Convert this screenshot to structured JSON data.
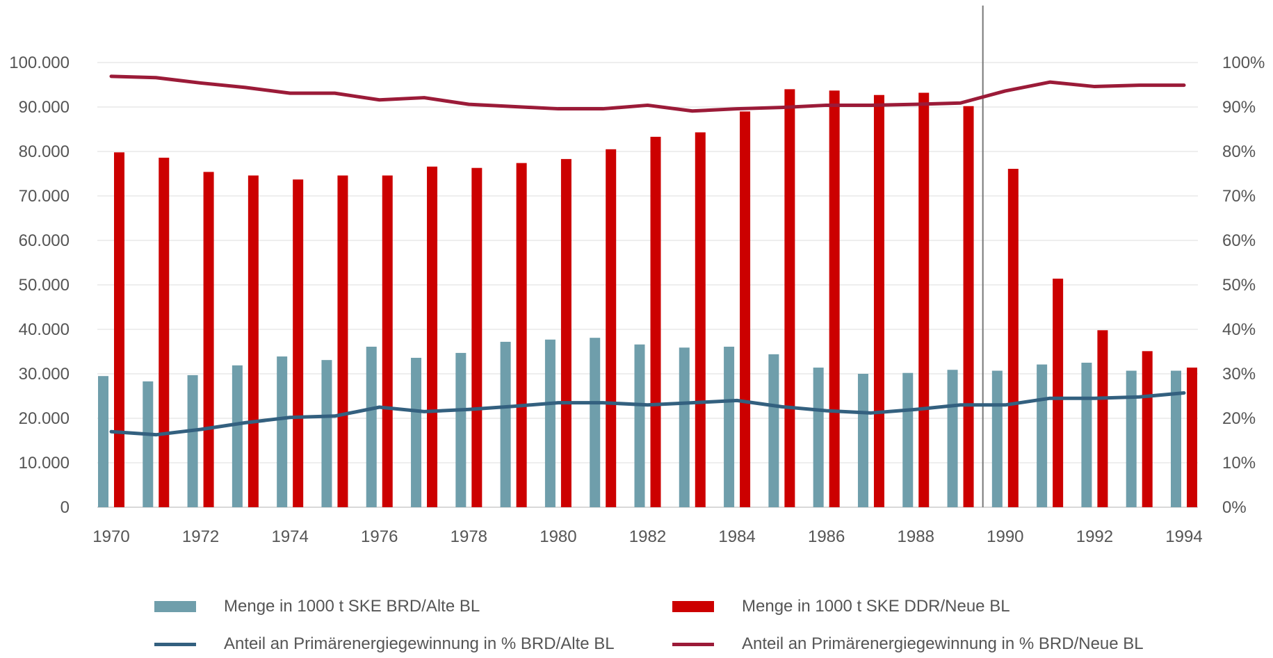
{
  "chart_data": {
    "type": "bar",
    "categories": [
      "1970",
      "1971",
      "1972",
      "1973",
      "1974",
      "1975",
      "1976",
      "1977",
      "1978",
      "1979",
      "1980",
      "1981",
      "1982",
      "1983",
      "1984",
      "1985",
      "1986",
      "1987",
      "1988",
      "1989",
      "1990",
      "1991",
      "1992",
      "1993",
      "1994"
    ],
    "x_tick_labels": [
      "1970",
      "1972",
      "1974",
      "1976",
      "1978",
      "1980",
      "1982",
      "1984",
      "1986",
      "1988",
      "1990",
      "1992",
      "1994"
    ],
    "y_left": {
      "ylim": [
        0,
        100000
      ],
      "tick_labels": [
        "0",
        "10.000",
        "20.000",
        "30.000",
        "40.000",
        "50.000",
        "60.000",
        "70.000",
        "80.000",
        "90.000",
        "100.000"
      ]
    },
    "y_right": {
      "ylim": [
        0,
        100
      ],
      "tick_labels": [
        "0%",
        "10%",
        "20%",
        "30%",
        "40%",
        "50%",
        "60%",
        "70%",
        "80%",
        "90%",
        "100%"
      ]
    },
    "grid": true,
    "divider_between": [
      "1989",
      "1990"
    ],
    "series": [
      {
        "name": "Menge in 1000 t SKE BRD/Alte BL",
        "kind": "bar",
        "axis": "left",
        "color": "#6f9eab",
        "values": [
          29500,
          28300,
          29700,
          31900,
          33900,
          33100,
          36100,
          33600,
          34700,
          37200,
          37700,
          38100,
          36600,
          35900,
          36100,
          34400,
          31400,
          30000,
          30200,
          30900,
          30700,
          32100,
          32500,
          30700,
          30700
        ]
      },
      {
        "name": "Menge in 1000 t SKE DDR/Neue BL",
        "kind": "bar",
        "axis": "left",
        "color": "#cc0000",
        "values": [
          79800,
          78600,
          75400,
          74600,
          73700,
          74600,
          74600,
          76600,
          76300,
          77400,
          78300,
          80500,
          83300,
          84300,
          89000,
          94000,
          93700,
          92700,
          93200,
          90200,
          76100,
          51400,
          39800,
          35100,
          31400
        ]
      },
      {
        "name": "Anteil an Primärenergiegewinnung in % BRD/Alte BL",
        "kind": "line",
        "axis": "right",
        "color": "#33607f",
        "values": [
          17,
          16.3,
          17.5,
          19,
          20.2,
          20.5,
          22.5,
          21.5,
          22,
          22.7,
          23.5,
          23.5,
          23,
          23.5,
          24,
          22.6,
          21.7,
          21.2,
          22,
          23,
          23,
          24.5,
          24.5,
          24.8,
          25.7
        ]
      },
      {
        "name": "Anteil an Primärenergiegewinnung in % BRD/Neue BL",
        "kind": "line",
        "axis": "right",
        "color": "#9b1b38",
        "values": [
          96.9,
          96.6,
          95.4,
          94.4,
          93.1,
          93.1,
          91.6,
          92.1,
          90.6,
          90.1,
          89.6,
          89.6,
          90.4,
          89.1,
          89.6,
          89.9,
          90.4,
          90.4,
          90.6,
          90.9,
          93.6,
          95.6,
          94.6,
          94.9,
          94.9
        ]
      }
    ]
  }
}
